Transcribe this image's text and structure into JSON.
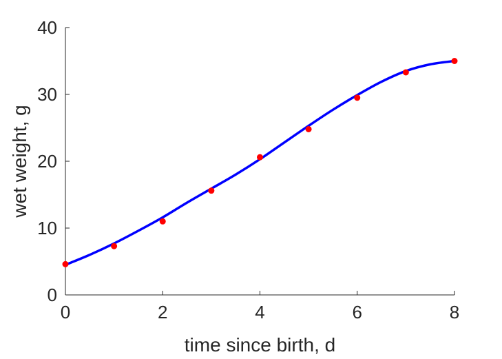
{
  "chart_data": {
    "type": "scatter",
    "xlabel": "time since birth, d",
    "ylabel": "wet weight, g",
    "xlim": [
      0,
      8
    ],
    "ylim": [
      0,
      40
    ],
    "xticks": [
      "0",
      "2",
      "4",
      "6",
      "8"
    ],
    "yticks": [
      "0",
      "10",
      "20",
      "30",
      "40"
    ],
    "grid": false,
    "series": [
      {
        "kind": "points",
        "color": "#ff0000",
        "x": [
          0,
          1,
          2,
          3,
          4,
          5,
          6,
          7,
          8
        ],
        "y": [
          4.6,
          7.3,
          11.0,
          15.6,
          20.6,
          24.8,
          29.5,
          33.3,
          35.0
        ]
      },
      {
        "kind": "line",
        "color": "#0000ff",
        "x": [
          0,
          0.5,
          1,
          1.5,
          2,
          2.5,
          3,
          3.5,
          4,
          4.5,
          5,
          5.5,
          6,
          6.5,
          7,
          7.5,
          8
        ],
        "y": [
          4.5,
          6.0,
          7.7,
          9.6,
          11.6,
          13.8,
          15.9,
          18.0,
          20.3,
          22.8,
          25.3,
          27.7,
          29.9,
          31.9,
          33.5,
          34.5,
          35.0
        ]
      }
    ]
  }
}
